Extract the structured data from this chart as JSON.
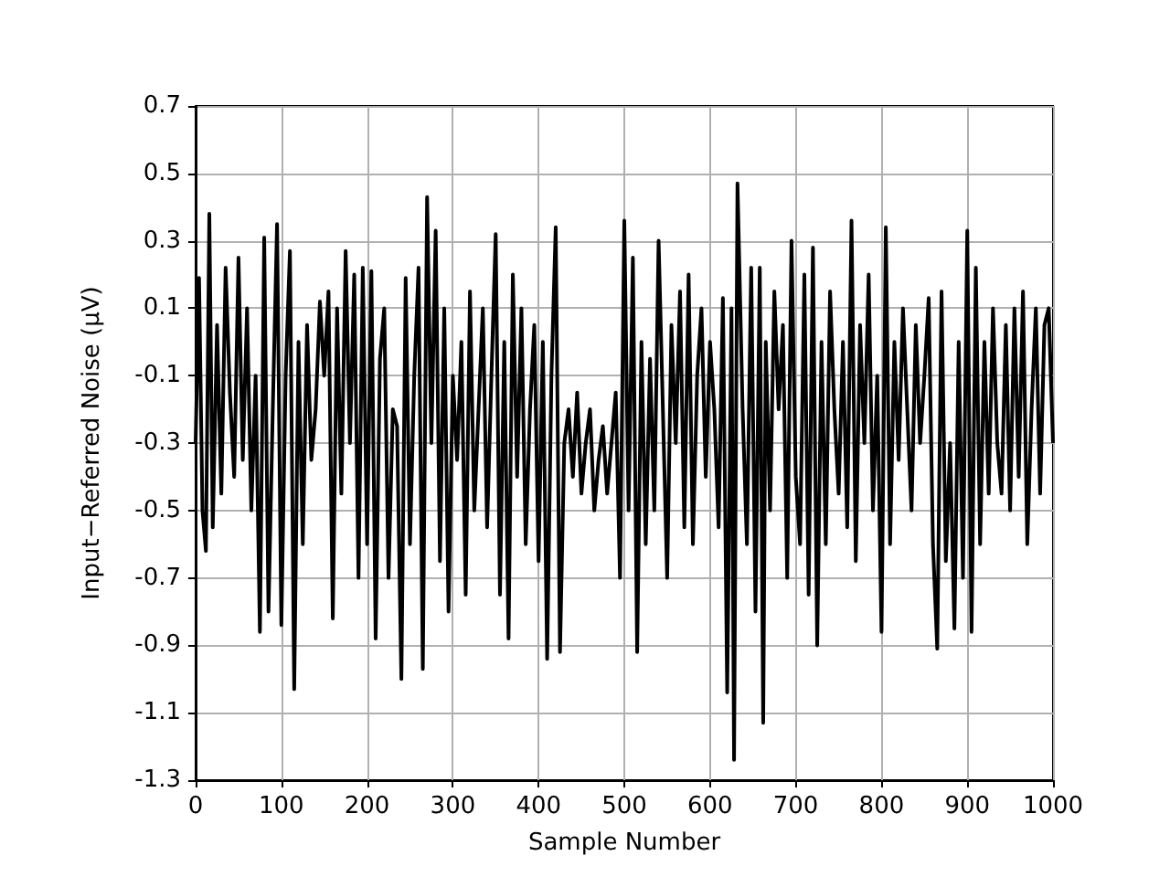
{
  "chart_data": {
    "type": "line",
    "xlabel": "Sample Number",
    "ylabel": "Input−Referred Noise (μV)",
    "xlim": [
      0,
      1000
    ],
    "ylim": [
      -1.3,
      0.7
    ],
    "xticks": [
      0,
      100,
      200,
      300,
      400,
      500,
      600,
      700,
      800,
      900,
      1000
    ],
    "yticks": [
      -1.3,
      -1.1,
      -0.9,
      -0.7,
      -0.5,
      -0.3,
      -0.1,
      0.1,
      0.3,
      0.5,
      0.7
    ],
    "grid": true,
    "marker": "none",
    "line_style": "solid",
    "series": [
      {
        "color": "#000000",
        "x": [
          0,
          4,
          8,
          12,
          16,
          20,
          25,
          30,
          35,
          40,
          45,
          50,
          55,
          60,
          65,
          70,
          75,
          80,
          85,
          90,
          95,
          100,
          105,
          110,
          115,
          120,
          125,
          130,
          135,
          140,
          145,
          150,
          155,
          160,
          165,
          170,
          175,
          180,
          185,
          190,
          195,
          200,
          205,
          210,
          215,
          220,
          225,
          230,
          235,
          240,
          245,
          250,
          255,
          260,
          265,
          270,
          275,
          280,
          285,
          290,
          295,
          300,
          305,
          310,
          315,
          320,
          325,
          330,
          335,
          340,
          345,
          350,
          355,
          360,
          365,
          370,
          375,
          380,
          385,
          390,
          395,
          400,
          405,
          410,
          415,
          420,
          425,
          430,
          435,
          440,
          445,
          450,
          455,
          460,
          465,
          470,
          475,
          480,
          485,
          490,
          495,
          500,
          505,
          510,
          515,
          520,
          525,
          530,
          535,
          540,
          545,
          550,
          555,
          560,
          565,
          570,
          575,
          580,
          585,
          590,
          595,
          600,
          605,
          610,
          615,
          620,
          625,
          628,
          632,
          638,
          643,
          648,
          653,
          658,
          662,
          665,
          670,
          675,
          680,
          685,
          690,
          695,
          700,
          705,
          710,
          715,
          720,
          725,
          730,
          735,
          740,
          745,
          750,
          755,
          760,
          765,
          770,
          775,
          780,
          785,
          790,
          795,
          800,
          805,
          810,
          815,
          820,
          825,
          830,
          835,
          840,
          845,
          850,
          855,
          860,
          865,
          870,
          875,
          880,
          885,
          890,
          895,
          900,
          905,
          910,
          915,
          920,
          925,
          930,
          935,
          940,
          945,
          950,
          955,
          960,
          965,
          970,
          975,
          980,
          985,
          990,
          995,
          1000
        ],
        "values": [
          -0.3,
          0.19,
          -0.5,
          -0.62,
          0.38,
          -0.55,
          0.05,
          -0.45,
          0.22,
          -0.15,
          -0.4,
          0.25,
          -0.35,
          0.1,
          -0.5,
          -0.1,
          -0.86,
          0.31,
          -0.8,
          -0.2,
          0.35,
          -0.84,
          -0.1,
          0.27,
          -1.03,
          0.0,
          -0.6,
          0.05,
          -0.35,
          -0.2,
          0.12,
          -0.1,
          0.15,
          -0.82,
          0.1,
          -0.45,
          0.27,
          -0.3,
          0.2,
          -0.7,
          0.22,
          -0.6,
          0.21,
          -0.88,
          -0.05,
          0.1,
          -0.7,
          -0.2,
          -0.25,
          -1.0,
          0.19,
          -0.6,
          -0.1,
          0.22,
          -0.97,
          0.43,
          -0.3,
          0.33,
          -0.65,
          0.1,
          -0.8,
          -0.1,
          -0.35,
          0.0,
          -0.75,
          0.15,
          -0.5,
          -0.2,
          0.1,
          -0.55,
          -0.1,
          0.32,
          -0.75,
          0.0,
          -0.88,
          0.2,
          -0.4,
          0.1,
          -0.6,
          -0.2,
          0.05,
          -0.65,
          0.0,
          -0.94,
          -0.1,
          0.34,
          -0.92,
          -0.3,
          -0.2,
          -0.4,
          -0.15,
          -0.45,
          -0.3,
          -0.2,
          -0.5,
          -0.35,
          -0.25,
          -0.45,
          -0.3,
          -0.15,
          -0.7,
          0.36,
          -0.5,
          0.25,
          -0.92,
          0.0,
          -0.6,
          -0.05,
          -0.5,
          0.3,
          -0.2,
          -0.7,
          0.05,
          -0.3,
          0.15,
          -0.55,
          0.2,
          -0.6,
          -0.1,
          0.1,
          -0.4,
          0.0,
          -0.2,
          -0.55,
          0.13,
          -1.04,
          0.1,
          -1.24,
          0.47,
          -0.2,
          -0.6,
          0.22,
          -0.8,
          0.22,
          -1.13,
          0.0,
          -0.5,
          0.15,
          -0.2,
          0.05,
          -0.7,
          0.3,
          -0.4,
          -0.6,
          0.2,
          -0.75,
          0.28,
          -0.9,
          0.0,
          -0.6,
          0.15,
          -0.2,
          -0.45,
          0.0,
          -0.55,
          0.36,
          -0.65,
          0.05,
          -0.3,
          0.2,
          -0.5,
          -0.1,
          -0.86,
          0.34,
          -0.6,
          0.0,
          -0.35,
          0.1,
          -0.2,
          -0.5,
          0.05,
          -0.3,
          -0.1,
          0.13,
          -0.6,
          -0.91,
          0.15,
          -0.65,
          -0.3,
          -0.85,
          0.0,
          -0.7,
          0.33,
          -0.86,
          0.22,
          -0.6,
          0.0,
          -0.45,
          0.1,
          -0.3,
          -0.45,
          0.05,
          -0.5,
          0.1,
          -0.4,
          0.15,
          -0.6,
          -0.2,
          0.1,
          -0.45,
          0.05,
          0.1,
          -0.3
        ]
      }
    ]
  }
}
